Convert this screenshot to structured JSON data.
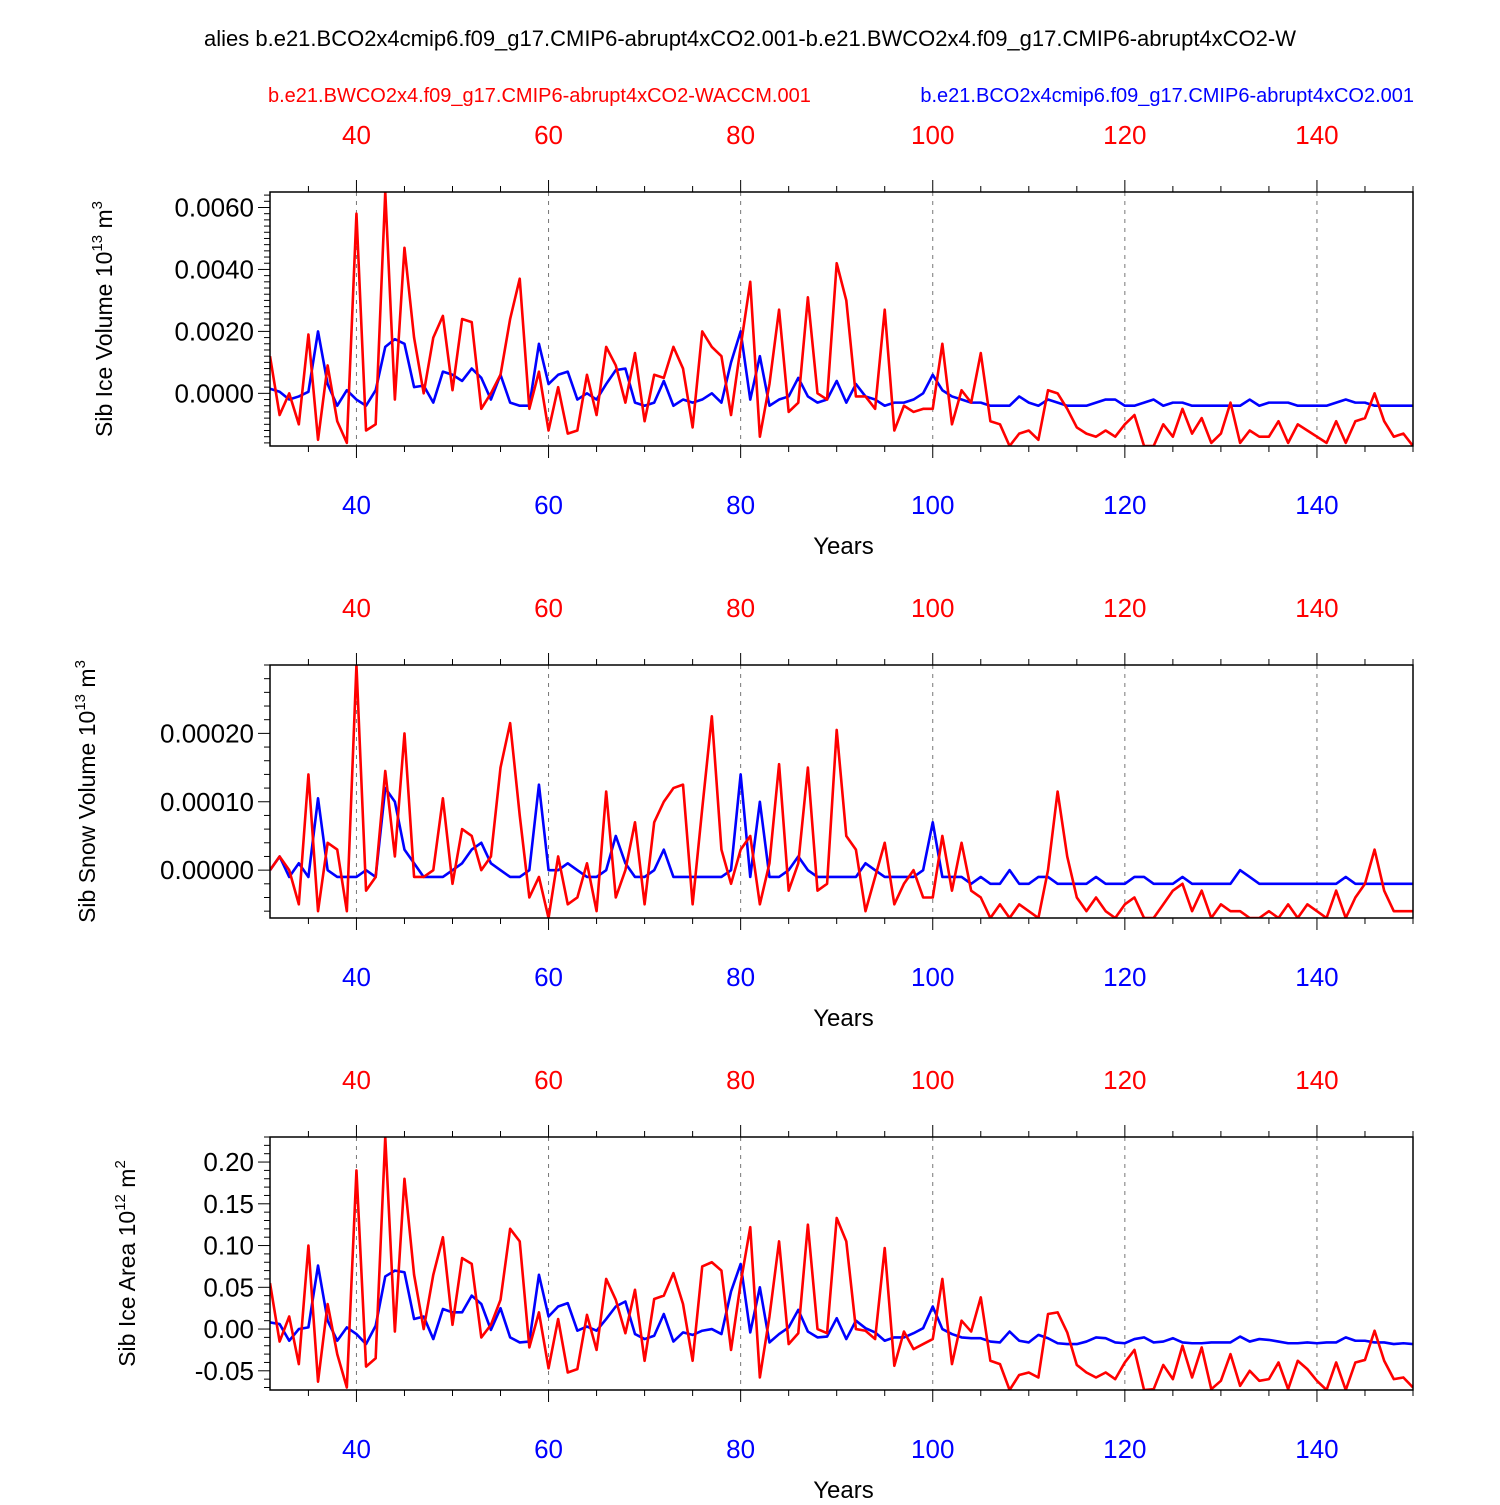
{
  "title": "alies b.e21.BCO2x4cmip6.f09_g17.CMIP6-abrupt4xCO2.001-b.e21.BWCO2x4.f09_g17.CMIP6-abrupt4xCO2-W",
  "legend": {
    "red_label": "b.e21.BWCO2x4.f09_g17.CMIP6-abrupt4xCO2-WACCM.001",
    "blue_label": "b.e21.BCO2x4cmip6.f09_g17.CMIP6-abrupt4xCO2.001"
  },
  "colors": {
    "red": "#ff0000",
    "blue": "#0000ff",
    "axis": "#000000",
    "grid": "#777777"
  },
  "chart_data": [
    {
      "type": "line",
      "id": "ice-volume",
      "ylabel": "Sib Ice Volume 10^13 m^3",
      "ylabel_base": "Sib Ice Volume 10",
      "ylabel_exp": "13",
      "ylabel_unit": " m",
      "ylabel_unit_exp": "3",
      "xlabel": "Years",
      "xlim": [
        31,
        150
      ],
      "ylim": [
        -0.0017,
        0.0065
      ],
      "yticks": [
        0.0,
        0.002,
        0.004,
        0.006
      ],
      "yticklabels": [
        "0.0000",
        "0.0020",
        "0.0040",
        "0.0060"
      ],
      "yminor": 0.0002,
      "xticks": [
        40,
        60,
        80,
        100,
        120,
        140
      ],
      "xticklabels": [
        "40",
        "60",
        "80",
        "100",
        "120",
        "140"
      ],
      "grid_x": [
        40,
        60,
        80,
        100,
        120,
        140
      ],
      "series": [
        {
          "name": "b.e21.BCO2x4cmip6.f09_g17.CMIP6-abrupt4xCO2.001",
          "color": "#0000ff",
          "values": [
            0.00015,
            5e-05,
            -0.0002,
            -0.0001,
            5e-05,
            0.002,
            0.0003,
            -0.0004,
            0.0001,
            -0.0002,
            -0.0004,
            0.0001,
            0.0015,
            0.00175,
            0.0016,
            0.0002,
            0.00025,
            -0.0003,
            0.0007,
            0.0006,
            0.0004,
            0.0008,
            0.0005,
            -0.0002,
            0.0006,
            -0.0003,
            -0.0004,
            -0.0004,
            0.0016,
            0.0003,
            0.0006,
            0.0007,
            -0.0002,
            0.0,
            -0.0002,
            0.0003,
            0.00075,
            0.0008,
            -0.0003,
            -0.0004,
            -0.0003,
            0.0004,
            -0.0004,
            -0.0002,
            -0.0003,
            -0.0002,
            0.0,
            -0.0003,
            0.001,
            0.002,
            -0.0002,
            0.0012,
            -0.0004,
            -0.0002,
            -0.0001,
            0.0005,
            -0.0001,
            -0.0003,
            -0.0002,
            0.0004,
            -0.0003,
            0.0003,
            -0.0001,
            -0.0002,
            -0.0004,
            -0.0003,
            -0.0003,
            -0.0002,
            0.0,
            0.0006,
            0.0001,
            -0.0001,
            -0.0002,
            -0.0003,
            -0.0003,
            -0.0004,
            -0.0004,
            -0.0004,
            -0.0001,
            -0.0003,
            -0.0004,
            -0.0002,
            -0.0003,
            -0.0004,
            -0.0004,
            -0.0004,
            -0.0003,
            -0.0002,
            -0.0002,
            -0.0004,
            -0.0004,
            -0.0003,
            -0.0002,
            -0.0004,
            -0.0003,
            -0.0003,
            -0.0004,
            -0.0004,
            -0.0004,
            -0.0004,
            -0.0004,
            -0.0004,
            -0.0002,
            -0.0004,
            -0.0003,
            -0.0003,
            -0.0003,
            -0.0004,
            -0.0004,
            -0.0004,
            -0.0004,
            -0.0003,
            -0.0002,
            -0.0003,
            -0.0003,
            -0.0004,
            -0.0004,
            -0.0004,
            -0.0004,
            -0.0004
          ]
        },
        {
          "name": "b.e21.BWCO2x4.f09_g17.CMIP6-abrupt4xCO2-WACCM.001",
          "color": "#ff0000",
          "values": [
            0.0012,
            -0.0007,
            0.0,
            -0.001,
            0.0019,
            -0.0015,
            0.0009,
            -0.0009,
            -0.0016,
            0.0058,
            -0.0012,
            -0.001,
            0.0065,
            -0.0002,
            0.0047,
            0.0018,
            0.0,
            0.0018,
            0.0025,
            0.0001,
            0.0024,
            0.0023,
            -0.0005,
            0.0,
            0.0006,
            0.0024,
            0.0037,
            -0.0005,
            0.0007,
            -0.0012,
            0.0002,
            -0.0013,
            -0.0012,
            0.0006,
            -0.0007,
            0.0015,
            0.0009,
            -0.0003,
            0.0013,
            -0.0009,
            0.0006,
            0.0005,
            0.0015,
            0.0008,
            -0.0011,
            0.002,
            0.0015,
            0.0012,
            -0.0007,
            0.0015,
            0.0036,
            -0.0014,
            0.0003,
            0.0027,
            -0.0006,
            -0.0003,
            0.0031,
            0.0,
            -0.0002,
            0.0042,
            0.003,
            -0.0001,
            -0.0001,
            -0.0005,
            0.0027,
            -0.0012,
            -0.0004,
            -0.0006,
            -0.0005,
            -0.0005,
            0.0016,
            -0.001,
            0.0001,
            -0.0003,
            0.0013,
            -0.0009,
            -0.001,
            -0.0017,
            -0.0013,
            -0.0012,
            -0.0015,
            0.0001,
            0.0,
            -0.0005,
            -0.0011,
            -0.0013,
            -0.0014,
            -0.0012,
            -0.0014,
            -0.001,
            -0.0007,
            -0.0017,
            -0.0017,
            -0.001,
            -0.0014,
            -0.0005,
            -0.0013,
            -0.0008,
            -0.0016,
            -0.0013,
            -0.0003,
            -0.0016,
            -0.0012,
            -0.0014,
            -0.0014,
            -0.0009,
            -0.0016,
            -0.001,
            -0.0012,
            -0.0014,
            -0.0016,
            -0.0009,
            -0.0016,
            -0.0009,
            -0.0008,
            0.0,
            -0.0009,
            -0.0014,
            -0.0013,
            -0.0017
          ]
        }
      ]
    },
    {
      "type": "line",
      "id": "snow-volume",
      "ylabel": "Sib Snow Volume 10^13 m^3",
      "ylabel_base": "Sib Snow Volume 10",
      "ylabel_exp": "13",
      "ylabel_unit": " m",
      "ylabel_unit_exp": "3",
      "xlabel": "Years",
      "xlim": [
        31,
        150
      ],
      "ylim": [
        -7e-05,
        0.0003
      ],
      "yticks": [
        0.0,
        0.0001,
        0.0002
      ],
      "yticklabels": [
        "0.00000",
        "0.00010",
        "0.00020"
      ],
      "yminor": 2e-05,
      "xticks": [
        40,
        60,
        80,
        100,
        120,
        140
      ],
      "xticklabels": [
        "40",
        "60",
        "80",
        "100",
        "120",
        "140"
      ],
      "grid_x": [
        40,
        60,
        80,
        100,
        120,
        140
      ],
      "series": [
        {
          "name": "b.e21.BCO2x4cmip6.f09_g17.CMIP6-abrupt4xCO2.001",
          "color": "#0000ff",
          "values": [
            0.0,
            2e-05,
            -1e-05,
            1e-05,
            -1e-05,
            0.000105,
            0.0,
            -1e-05,
            -1e-05,
            -1e-05,
            0.0,
            -1e-05,
            0.00012,
            0.0001,
            3e-05,
            1e-05,
            -1e-05,
            -1e-05,
            -1e-05,
            0.0,
            1e-05,
            3e-05,
            4e-05,
            1e-05,
            0.0,
            -1e-05,
            -1e-05,
            0.0,
            0.000125,
            0.0,
            0.0,
            1e-05,
            0.0,
            -1e-05,
            -1e-05,
            0.0,
            5e-05,
            1e-05,
            -1e-05,
            -1e-05,
            0.0,
            3e-05,
            -1e-05,
            -1e-05,
            -1e-05,
            -1e-05,
            -1e-05,
            -1e-05,
            0.0,
            0.00014,
            -1e-05,
            0.0001,
            -1e-05,
            -1e-05,
            0.0,
            2e-05,
            0.0,
            -1e-05,
            -1e-05,
            -1e-05,
            -1e-05,
            -1e-05,
            1e-05,
            0.0,
            -1e-05,
            -1e-05,
            -1e-05,
            -1e-05,
            0.0,
            7e-05,
            -1e-05,
            -1e-05,
            -1e-05,
            -2e-05,
            -1e-05,
            -2e-05,
            -2e-05,
            0.0,
            -2e-05,
            -2e-05,
            -1e-05,
            -1e-05,
            -2e-05,
            -2e-05,
            -2e-05,
            -2e-05,
            -1e-05,
            -2e-05,
            -2e-05,
            -2e-05,
            -1e-05,
            -1e-05,
            -2e-05,
            -2e-05,
            -2e-05,
            -1e-05,
            -2e-05,
            -2e-05,
            -2e-05,
            -2e-05,
            -2e-05,
            0.0,
            -1e-05,
            -2e-05,
            -2e-05,
            -2e-05,
            -2e-05,
            -2e-05,
            -2e-05,
            -2e-05,
            -2e-05,
            -2e-05,
            -1e-05,
            -2e-05,
            -2e-05,
            -2e-05,
            -2e-05,
            -2e-05,
            -2e-05,
            -2e-05
          ]
        },
        {
          "name": "b.e21.BWCO2x4.f09_g17.CMIP6-abrupt4xCO2-WACCM.001",
          "color": "#ff0000",
          "values": [
            0.0,
            2e-05,
            0.0,
            -5e-05,
            0.00014,
            -6e-05,
            4e-05,
            3e-05,
            -6e-05,
            0.0003,
            -3e-05,
            -1e-05,
            0.000145,
            2e-05,
            0.0002,
            -1e-05,
            -1e-05,
            0.0,
            0.000105,
            -2e-05,
            6e-05,
            5e-05,
            0.0,
            2e-05,
            0.00015,
            0.000215,
            8e-05,
            -4e-05,
            -1e-05,
            -7e-05,
            2e-05,
            -5e-05,
            -4e-05,
            1e-05,
            -6e-05,
            0.000115,
            -4e-05,
            0.0,
            7e-05,
            -5e-05,
            7e-05,
            0.0001,
            0.00012,
            0.000125,
            -5e-05,
            9e-05,
            0.000225,
            3e-05,
            -2e-05,
            3e-05,
            5e-05,
            -5e-05,
            1e-05,
            0.000155,
            -3e-05,
            1e-05,
            0.00015,
            -3e-05,
            -2e-05,
            0.000205,
            5e-05,
            3e-05,
            -6e-05,
            -1e-05,
            4e-05,
            -5e-05,
            -2e-05,
            0.0,
            -4e-05,
            -4e-05,
            5e-05,
            -3e-05,
            4e-05,
            -3e-05,
            -4e-05,
            -7e-05,
            -5e-05,
            -7e-05,
            -5e-05,
            -6e-05,
            -7e-05,
            0.0,
            0.000115,
            2e-05,
            -4e-05,
            -6e-05,
            -4e-05,
            -6e-05,
            -7e-05,
            -5e-05,
            -4e-05,
            -7e-05,
            -7e-05,
            -5e-05,
            -3e-05,
            -2e-05,
            -6e-05,
            -3e-05,
            -7e-05,
            -5e-05,
            -6e-05,
            -6e-05,
            -7e-05,
            -7e-05,
            -6e-05,
            -7e-05,
            -5e-05,
            -7e-05,
            -5e-05,
            -6e-05,
            -7e-05,
            -3e-05,
            -7e-05,
            -4e-05,
            -2e-05,
            3e-05,
            -3e-05,
            -6e-05,
            -6e-05,
            -6e-05
          ]
        }
      ]
    },
    {
      "type": "line",
      "id": "ice-area",
      "ylabel": "Sib Ice Area 10^12 m^2",
      "ylabel_base": "Sib Ice Area 10",
      "ylabel_exp": "12",
      "ylabel_unit": " m",
      "ylabel_unit_exp": "2",
      "xlabel": "Years",
      "xlim": [
        31,
        150
      ],
      "ylim": [
        -0.073,
        0.23
      ],
      "yticks": [
        -0.05,
        0.0,
        0.05,
        0.1,
        0.15,
        0.2
      ],
      "yticklabels": [
        "-0.05",
        "0.00",
        "0.05",
        "0.10",
        "0.15",
        "0.20"
      ],
      "yminor": 0.01,
      "xticks": [
        40,
        60,
        80,
        100,
        120,
        140
      ],
      "xticklabels": [
        "40",
        "60",
        "80",
        "100",
        "120",
        "140"
      ],
      "grid_x": [
        40,
        60,
        80,
        100,
        120,
        140
      ],
      "series": [
        {
          "name": "b.e21.BCO2x4cmip6.f09_g17.CMIP6-abrupt4xCO2.001",
          "color": "#0000ff",
          "values": [
            0.008,
            0.006,
            -0.014,
            0.0,
            0.002,
            0.076,
            0.01,
            -0.014,
            0.002,
            -0.006,
            -0.018,
            0.004,
            0.063,
            0.07,
            0.068,
            0.012,
            0.015,
            -0.012,
            0.024,
            0.02,
            0.02,
            0.04,
            0.03,
            -0.001,
            0.025,
            -0.01,
            -0.016,
            -0.015,
            0.065,
            0.015,
            0.027,
            0.031,
            -0.002,
            0.003,
            -0.002,
            0.012,
            0.027,
            0.033,
            -0.006,
            -0.012,
            -0.008,
            0.018,
            -0.015,
            -0.004,
            -0.007,
            -0.002,
            0.0,
            -0.006,
            0.045,
            0.078,
            -0.004,
            0.05,
            -0.016,
            -0.006,
            0.002,
            0.023,
            -0.003,
            -0.01,
            -0.009,
            0.013,
            -0.012,
            0.01,
            0.001,
            -0.004,
            -0.014,
            -0.01,
            -0.01,
            -0.005,
            0.001,
            0.027,
            0.0,
            -0.006,
            -0.01,
            -0.011,
            -0.011,
            -0.015,
            -0.016,
            -0.003,
            -0.014,
            -0.016,
            -0.007,
            -0.011,
            -0.017,
            -0.018,
            -0.018,
            -0.015,
            -0.01,
            -0.011,
            -0.016,
            -0.017,
            -0.012,
            -0.01,
            -0.016,
            -0.015,
            -0.011,
            -0.016,
            -0.017,
            -0.017,
            -0.016,
            -0.016,
            -0.016,
            -0.009,
            -0.015,
            -0.012,
            -0.013,
            -0.015,
            -0.017,
            -0.017,
            -0.016,
            -0.017,
            -0.016,
            -0.016,
            -0.01,
            -0.014,
            -0.014,
            -0.016,
            -0.016,
            -0.018,
            -0.017,
            -0.018
          ]
        },
        {
          "name": "b.e21.BWCO2x4.f09_g17.CMIP6-abrupt4xCO2-WACCM.001",
          "color": "#ff0000",
          "values": [
            0.055,
            -0.015,
            0.015,
            -0.042,
            0.1,
            -0.063,
            0.03,
            -0.03,
            -0.07,
            0.19,
            -0.045,
            -0.035,
            0.23,
            -0.003,
            0.18,
            0.065,
            0.0,
            0.065,
            0.11,
            0.005,
            0.085,
            0.078,
            -0.01,
            0.005,
            0.035,
            0.12,
            0.105,
            -0.022,
            0.02,
            -0.047,
            0.012,
            -0.052,
            -0.048,
            0.017,
            -0.025,
            0.06,
            0.035,
            -0.005,
            0.047,
            -0.038,
            0.036,
            0.04,
            0.067,
            0.03,
            -0.038,
            0.075,
            0.08,
            0.07,
            -0.025,
            0.055,
            0.122,
            -0.058,
            0.015,
            0.105,
            -0.018,
            -0.005,
            0.125,
            0.0,
            -0.005,
            0.133,
            0.105,
            0.0,
            -0.002,
            -0.012,
            0.097,
            -0.044,
            -0.003,
            -0.024,
            -0.018,
            -0.012,
            0.06,
            -0.042,
            0.01,
            -0.003,
            0.038,
            -0.038,
            -0.042,
            -0.073,
            -0.055,
            -0.052,
            -0.058,
            0.018,
            0.02,
            -0.004,
            -0.043,
            -0.052,
            -0.058,
            -0.052,
            -0.06,
            -0.04,
            -0.025,
            -0.073,
            -0.072,
            -0.043,
            -0.06,
            -0.02,
            -0.058,
            -0.022,
            -0.072,
            -0.062,
            -0.03,
            -0.068,
            -0.05,
            -0.062,
            -0.06,
            -0.04,
            -0.072,
            -0.038,
            -0.048,
            -0.062,
            -0.073,
            -0.04,
            -0.073,
            -0.04,
            -0.037,
            -0.002,
            -0.038,
            -0.06,
            -0.058,
            -0.07
          ]
        }
      ]
    }
  ]
}
